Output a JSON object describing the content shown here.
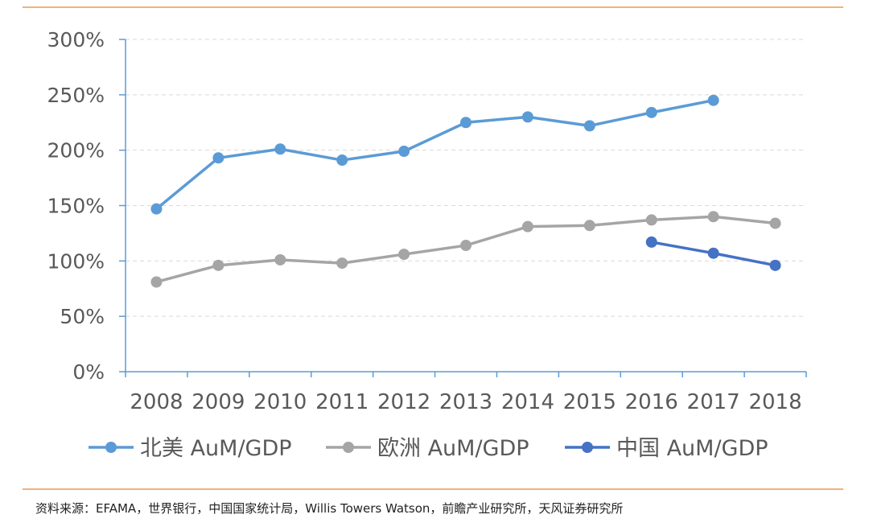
{
  "chart_data": {
    "type": "line",
    "categories": [
      "2008",
      "2009",
      "2010",
      "2011",
      "2012",
      "2013",
      "2014",
      "2015",
      "2016",
      "2017",
      "2018"
    ],
    "ylim": [
      0,
      300
    ],
    "yticks": [
      0,
      50,
      100,
      150,
      200,
      250,
      300
    ],
    "yticklabels": [
      "0%",
      "50%",
      "100%",
      "150%",
      "200%",
      "250%",
      "300%"
    ],
    "grid": true,
    "legend_position": "bottom",
    "series": [
      {
        "name": "北美 AuM/GDP",
        "color": "#5b9bd5",
        "values": [
          147,
          193,
          201,
          191,
          199,
          225,
          230,
          222,
          234,
          245,
          null
        ]
      },
      {
        "name": "欧洲 AuM/GDP",
        "color": "#a5a5a5",
        "values": [
          81,
          96,
          101,
          98,
          106,
          114,
          131,
          132,
          137,
          140,
          134
        ]
      },
      {
        "name": "中国 AuM/GDP",
        "color": "#4472c4",
        "values": [
          null,
          null,
          null,
          null,
          null,
          null,
          null,
          null,
          117,
          107,
          96
        ]
      }
    ]
  },
  "source_text": "资料来源：EFAMA，世界银行，中国国家统计局，Willis Towers Watson，前瞻产业研究所，天风证券研究所"
}
